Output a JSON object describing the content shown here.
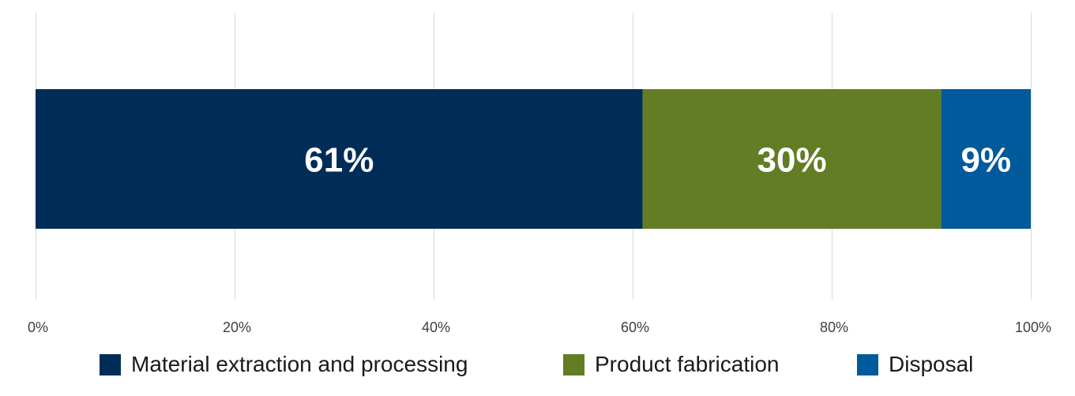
{
  "chart_data": {
    "type": "bar",
    "orientation": "horizontal",
    "stacked": true,
    "categories": [
      ""
    ],
    "series": [
      {
        "name": "Material extraction and processing",
        "values": [
          61
        ],
        "label": "61%",
        "color": "#002D57"
      },
      {
        "name": "Product fabrication",
        "values": [
          30
        ],
        "label": "30%",
        "color": "#627D24"
      },
      {
        "name": "Disposal",
        "values": [
          9
        ],
        "label": "9%",
        "color": "#005A9C"
      }
    ],
    "xlim": [
      0,
      100
    ],
    "x_ticks": [
      0,
      20,
      40,
      60,
      80,
      100
    ],
    "x_tick_labels": [
      "0%",
      "20%",
      "40%",
      "60%",
      "80%",
      "100%"
    ],
    "grid": "vertical",
    "legend_position": "bottom"
  }
}
